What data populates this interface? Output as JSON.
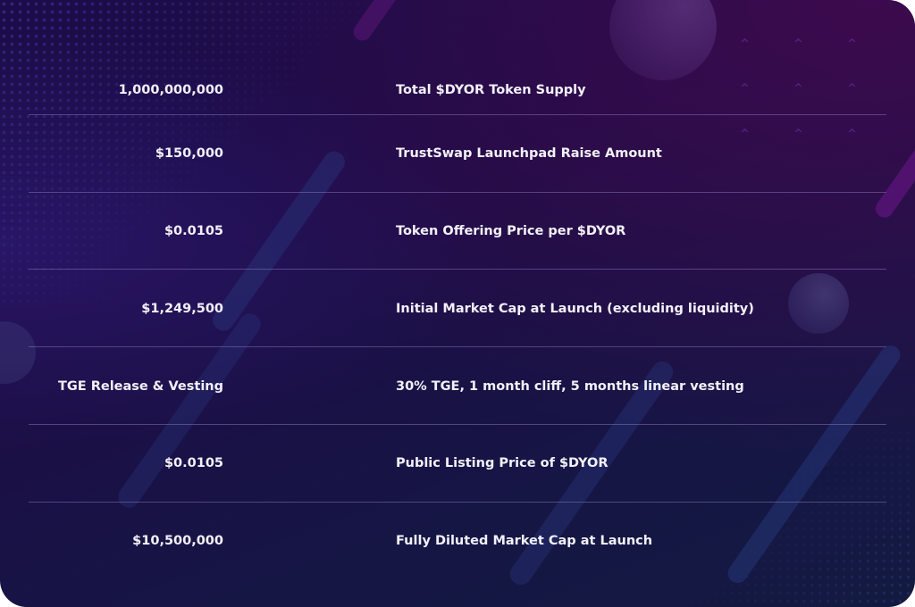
{
  "rows": [
    {
      "value": "1,000,000,000",
      "label": "Total $DYOR Token Supply"
    },
    {
      "value": "$150,000",
      "label": "TrustSwap Launchpad Raise Amount"
    },
    {
      "value": "$0.0105",
      "label": "Token Offering Price per $DYOR"
    },
    {
      "value": "$1,249,500",
      "label": "Initial Market Cap at Launch (excluding liquidity)"
    },
    {
      "value": "TGE Release & Vesting",
      "label": "30% TGE, 1 month cliff, 5 months linear vesting"
    },
    {
      "value": "$0.0105",
      "label": "Public Listing Price of $DYOR"
    },
    {
      "value": "$10,500,000",
      "label": "Fully Diluted Market Cap at Launch"
    }
  ],
  "colors": {
    "background": "#1c0d4a",
    "text": "#f2f0f8",
    "divider": "#6e5fa0",
    "accent": "#5a1a7a"
  }
}
